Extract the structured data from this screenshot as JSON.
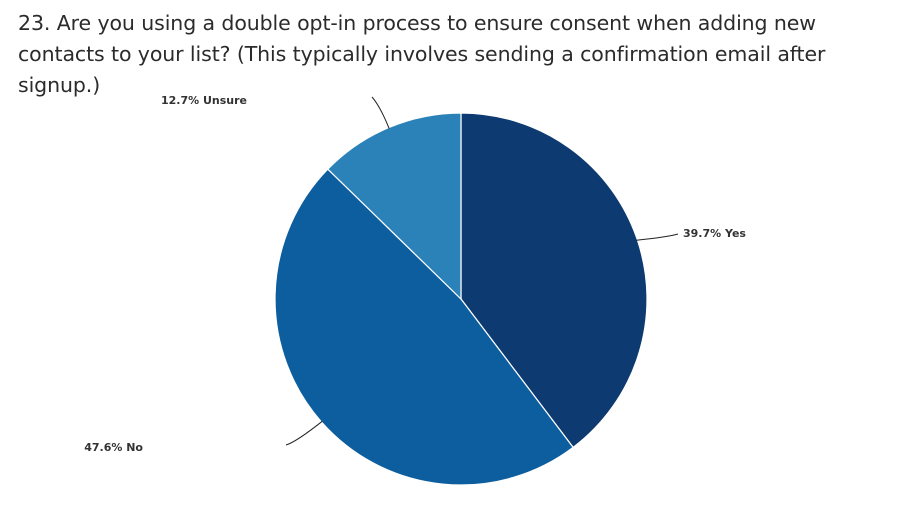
{
  "question": {
    "title": "23. Are you using a double opt-in process to ensure consent when adding new contacts to your list? (This typically involves sending a confirmation email after signup.)"
  },
  "chart_data": {
    "type": "pie",
    "title": "",
    "slices": [
      {
        "label": "Yes",
        "value": 39.7,
        "display": "39.7% Yes",
        "color": "#0d3a70",
        "label_side": "right"
      },
      {
        "label": "No",
        "value": 47.6,
        "display": "47.6% No",
        "color": "#0d5e9f",
        "label_side": "left"
      },
      {
        "label": "Unsure",
        "value": 12.7,
        "display": "12.7% Unsure",
        "color": "#2a82b8",
        "label_side": "left"
      }
    ],
    "start_angle": "12 o'clock",
    "direction": "clockwise",
    "legend": "none",
    "slice_border_color": "#ffffff",
    "leader_line_color": "#222222"
  }
}
